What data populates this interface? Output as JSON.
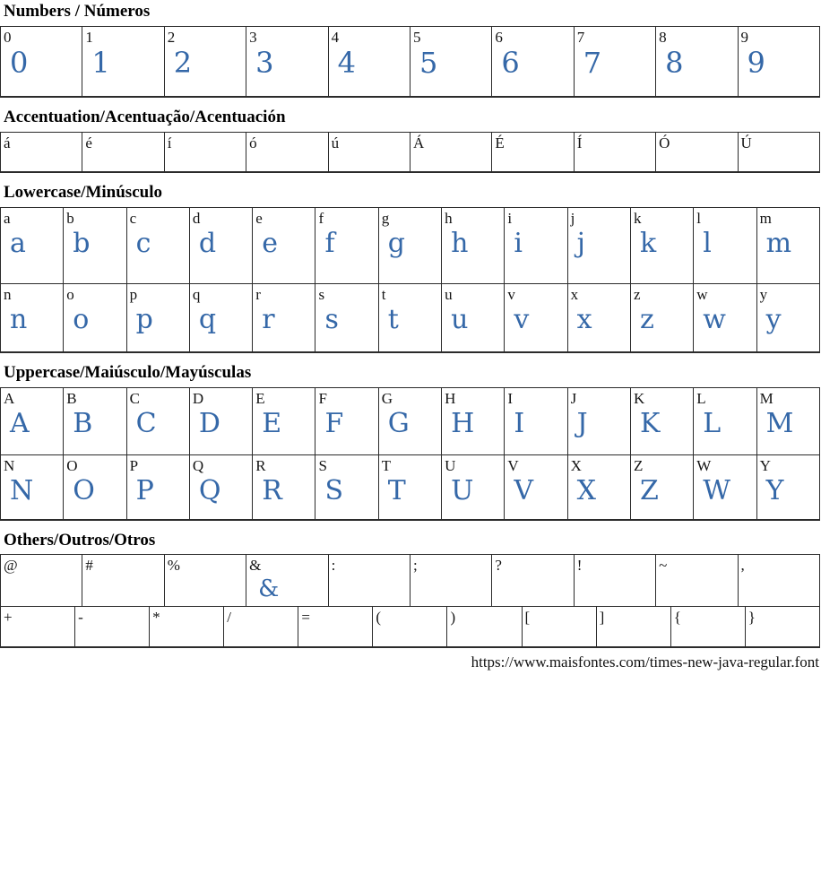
{
  "colors": {
    "glyph_blue": "#3568a8",
    "label_black": "#141414",
    "border": "#2b2b2b"
  },
  "footer": {
    "source_url": "https://www.maisfontes.com/times-new-java-regular.font"
  },
  "sections": [
    {
      "id": "numbers",
      "title": "Numbers / Números",
      "rows": [
        {
          "cells": [
            {
              "label": "0",
              "glyph": "0"
            },
            {
              "label": "1",
              "glyph": "1"
            },
            {
              "label": "2",
              "glyph": "2"
            },
            {
              "label": "3",
              "glyph": "3"
            },
            {
              "label": "4",
              "glyph": "4"
            },
            {
              "label": "5",
              "glyph": "5"
            },
            {
              "label": "6",
              "glyph": "6"
            },
            {
              "label": "7",
              "glyph": "7"
            },
            {
              "label": "8",
              "glyph": "8"
            },
            {
              "label": "9",
              "glyph": "9"
            }
          ]
        }
      ]
    },
    {
      "id": "accentuation",
      "title": "Accentuation/Acentuação/Acentuación",
      "rows": [
        {
          "cells": [
            {
              "label": "á",
              "glyph": ""
            },
            {
              "label": "é",
              "glyph": ""
            },
            {
              "label": "í",
              "glyph": ""
            },
            {
              "label": "ó",
              "glyph": ""
            },
            {
              "label": "ú",
              "glyph": ""
            },
            {
              "label": "Á",
              "glyph": ""
            },
            {
              "label": "É",
              "glyph": ""
            },
            {
              "label": "Í",
              "glyph": ""
            },
            {
              "label": "Ó",
              "glyph": ""
            },
            {
              "label": "Ú",
              "glyph": ""
            }
          ]
        }
      ]
    },
    {
      "id": "lowercase",
      "title": "Lowercase/Minúsculo",
      "rows": [
        {
          "cells": [
            {
              "label": "a",
              "glyph": "a"
            },
            {
              "label": "b",
              "glyph": "b"
            },
            {
              "label": "c",
              "glyph": "c"
            },
            {
              "label": "d",
              "glyph": "d"
            },
            {
              "label": "e",
              "glyph": "e"
            },
            {
              "label": "f",
              "glyph": "f"
            },
            {
              "label": "g",
              "glyph": "g"
            },
            {
              "label": "h",
              "glyph": "h"
            },
            {
              "label": "i",
              "glyph": "i"
            },
            {
              "label": "j",
              "glyph": "j"
            },
            {
              "label": "k",
              "glyph": "k"
            },
            {
              "label": "l",
              "glyph": "l"
            },
            {
              "label": "m",
              "glyph": "m"
            }
          ]
        },
        {
          "cells": [
            {
              "label": "n",
              "glyph": "n"
            },
            {
              "label": "o",
              "glyph": "o"
            },
            {
              "label": "p",
              "glyph": "p"
            },
            {
              "label": "q",
              "glyph": "q"
            },
            {
              "label": "r",
              "glyph": "r"
            },
            {
              "label": "s",
              "glyph": "s"
            },
            {
              "label": "t",
              "glyph": "t"
            },
            {
              "label": "u",
              "glyph": "u"
            },
            {
              "label": "v",
              "glyph": "v"
            },
            {
              "label": "x",
              "glyph": "x"
            },
            {
              "label": "z",
              "glyph": "z"
            },
            {
              "label": "w",
              "glyph": "w"
            },
            {
              "label": "y",
              "glyph": "y"
            }
          ]
        }
      ]
    },
    {
      "id": "uppercase",
      "title": "Uppercase/Maiúsculo/Mayúsculas",
      "rows": [
        {
          "cells": [
            {
              "label": "A",
              "glyph": "A"
            },
            {
              "label": "B",
              "glyph": "B"
            },
            {
              "label": "C",
              "glyph": "C"
            },
            {
              "label": "D",
              "glyph": "D"
            },
            {
              "label": "E",
              "glyph": "E"
            },
            {
              "label": "F",
              "glyph": "F"
            },
            {
              "label": "G",
              "glyph": "G"
            },
            {
              "label": "H",
              "glyph": "H"
            },
            {
              "label": "I",
              "glyph": "I"
            },
            {
              "label": "J",
              "glyph": "J"
            },
            {
              "label": "K",
              "glyph": "K"
            },
            {
              "label": "L",
              "glyph": "L"
            },
            {
              "label": "M",
              "glyph": "M"
            }
          ]
        },
        {
          "cells": [
            {
              "label": "N",
              "glyph": "N"
            },
            {
              "label": "O",
              "glyph": "O"
            },
            {
              "label": "P",
              "glyph": "P"
            },
            {
              "label": "Q",
              "glyph": "Q"
            },
            {
              "label": "R",
              "glyph": "R"
            },
            {
              "label": "S",
              "glyph": "S"
            },
            {
              "label": "T",
              "glyph": "T"
            },
            {
              "label": "U",
              "glyph": "U"
            },
            {
              "label": "V",
              "glyph": "V"
            },
            {
              "label": "X",
              "glyph": "X"
            },
            {
              "label": "Z",
              "glyph": "Z"
            },
            {
              "label": "W",
              "glyph": "W"
            },
            {
              "label": "Y",
              "glyph": "Y"
            }
          ]
        }
      ]
    },
    {
      "id": "others",
      "title": "Others/Outros/Otros",
      "rows": [
        {
          "cells": [
            {
              "label": "@",
              "glyph": ""
            },
            {
              "label": "#",
              "glyph": ""
            },
            {
              "label": "%",
              "glyph": ""
            },
            {
              "label": "&",
              "glyph": "&"
            },
            {
              "label": ":",
              "glyph": ""
            },
            {
              "label": ";",
              "glyph": ""
            },
            {
              "label": "?",
              "glyph": ""
            },
            {
              "label": "!",
              "glyph": ""
            },
            {
              "label": "~",
              "glyph": ""
            },
            {
              "label": ",",
              "glyph": ""
            }
          ]
        },
        {
          "cells": [
            {
              "label": "+",
              "glyph": ""
            },
            {
              "label": "-",
              "glyph": ""
            },
            {
              "label": "*",
              "glyph": ""
            },
            {
              "label": "/",
              "glyph": ""
            },
            {
              "label": "=",
              "glyph": ""
            },
            {
              "label": "(",
              "glyph": ""
            },
            {
              "label": ")",
              "glyph": ""
            },
            {
              "label": "[",
              "glyph": ""
            },
            {
              "label": "]",
              "glyph": ""
            },
            {
              "label": "{",
              "glyph": ""
            },
            {
              "label": "}",
              "glyph": ""
            }
          ]
        }
      ]
    }
  ]
}
